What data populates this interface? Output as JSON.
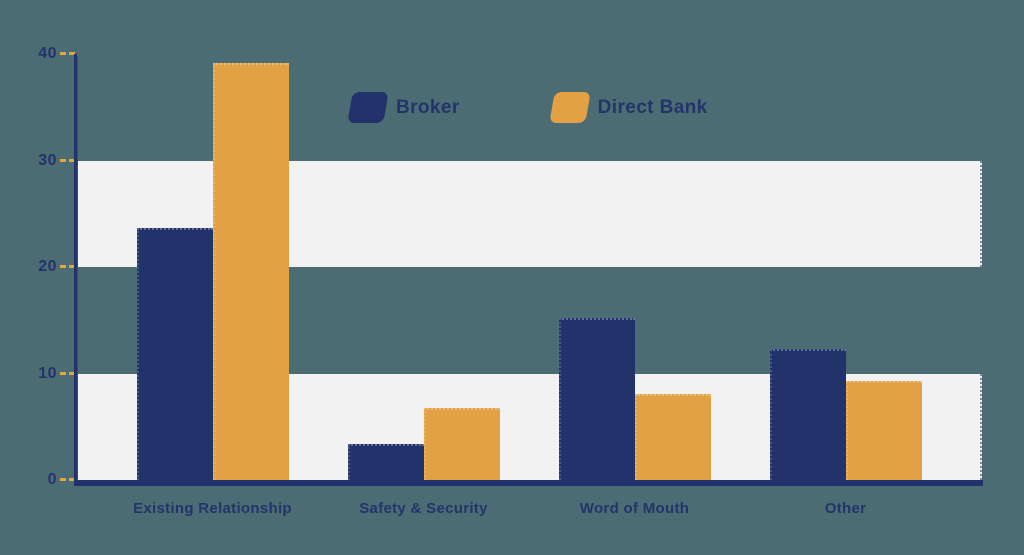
{
  "colors": {
    "background": "#4C6C74",
    "navy": "#22336B",
    "orange": "#E2A144",
    "band": "#F2F2F3",
    "axis": "#22336B",
    "tick": "#E6A53F",
    "text": "#23346A"
  },
  "legend": {
    "items": [
      {
        "label": "Broker",
        "color": "#22336B"
      },
      {
        "label": "Direct Bank",
        "color": "#E2A144"
      }
    ]
  },
  "chart_data": {
    "type": "bar",
    "title": "",
    "xlabel": "",
    "ylabel": "",
    "categories": [
      "Existing Relationship",
      "Safety & Security",
      "Word of Mouth",
      "Other"
    ],
    "series": [
      {
        "name": "Broker",
        "color": "#22336B",
        "values": [
          23.7,
          3.4,
          15.2,
          12.3
        ]
      },
      {
        "name": "Direct Bank",
        "color": "#E2A144",
        "values": [
          39.2,
          6.8,
          8.1,
          9.3
        ]
      }
    ],
    "ylim": [
      0,
      40
    ],
    "yticks": [
      0,
      10,
      20,
      30,
      40
    ],
    "highlight_bands": [
      [
        0,
        10
      ],
      [
        20,
        30
      ]
    ],
    "grid": "off",
    "legend_position": "top-center"
  }
}
